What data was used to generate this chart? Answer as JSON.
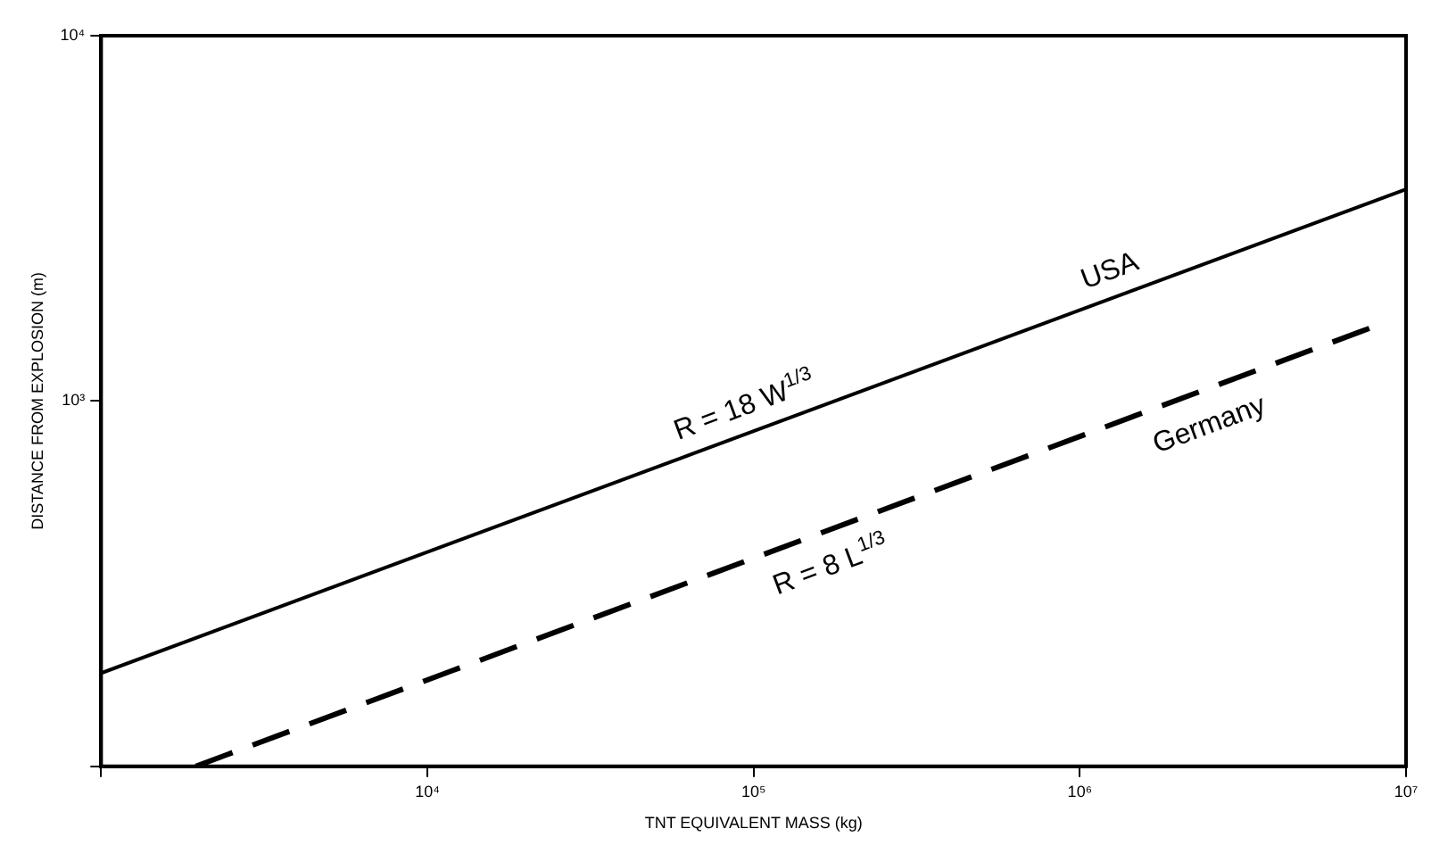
{
  "chart_data": {
    "type": "line",
    "xlabel": "TNT EQUIVALENT MASS (kg)",
    "ylabel": "DISTANCE FROM EXPLOSION (m)",
    "log": "xy",
    "xlim": [
      1000,
      10000000
    ],
    "ylim": [
      100,
      10000
    ],
    "xticks": [
      {
        "value": 1000,
        "label": null
      },
      {
        "value": 10000,
        "label": "10⁴"
      },
      {
        "value": 100000,
        "label": "10⁵"
      },
      {
        "value": 1000000,
        "label": "10⁶"
      },
      {
        "value": 10000000,
        "label": "10⁷"
      }
    ],
    "yticks": [
      {
        "value": 100,
        "label": null
      },
      {
        "value": 1000,
        "label": "10³"
      },
      {
        "value": 10000,
        "label": "10⁴"
      }
    ],
    "grid": false,
    "legend": false,
    "marker": "none",
    "series": [
      {
        "name": "USA",
        "color": "#000000",
        "line_style": "solid",
        "x": [
          1000,
          10000000
        ],
        "values": [
          180,
          3800
        ]
      },
      {
        "name": "Germany",
        "color": "#000000",
        "line_style": "dashed",
        "x": [
          1950,
          8000000
        ],
        "values": [
          100,
          1600
        ]
      }
    ],
    "annotations": [
      "R = 18 W$^{1/3}$",
      "R = 8 L$^{1/3}$"
    ]
  }
}
